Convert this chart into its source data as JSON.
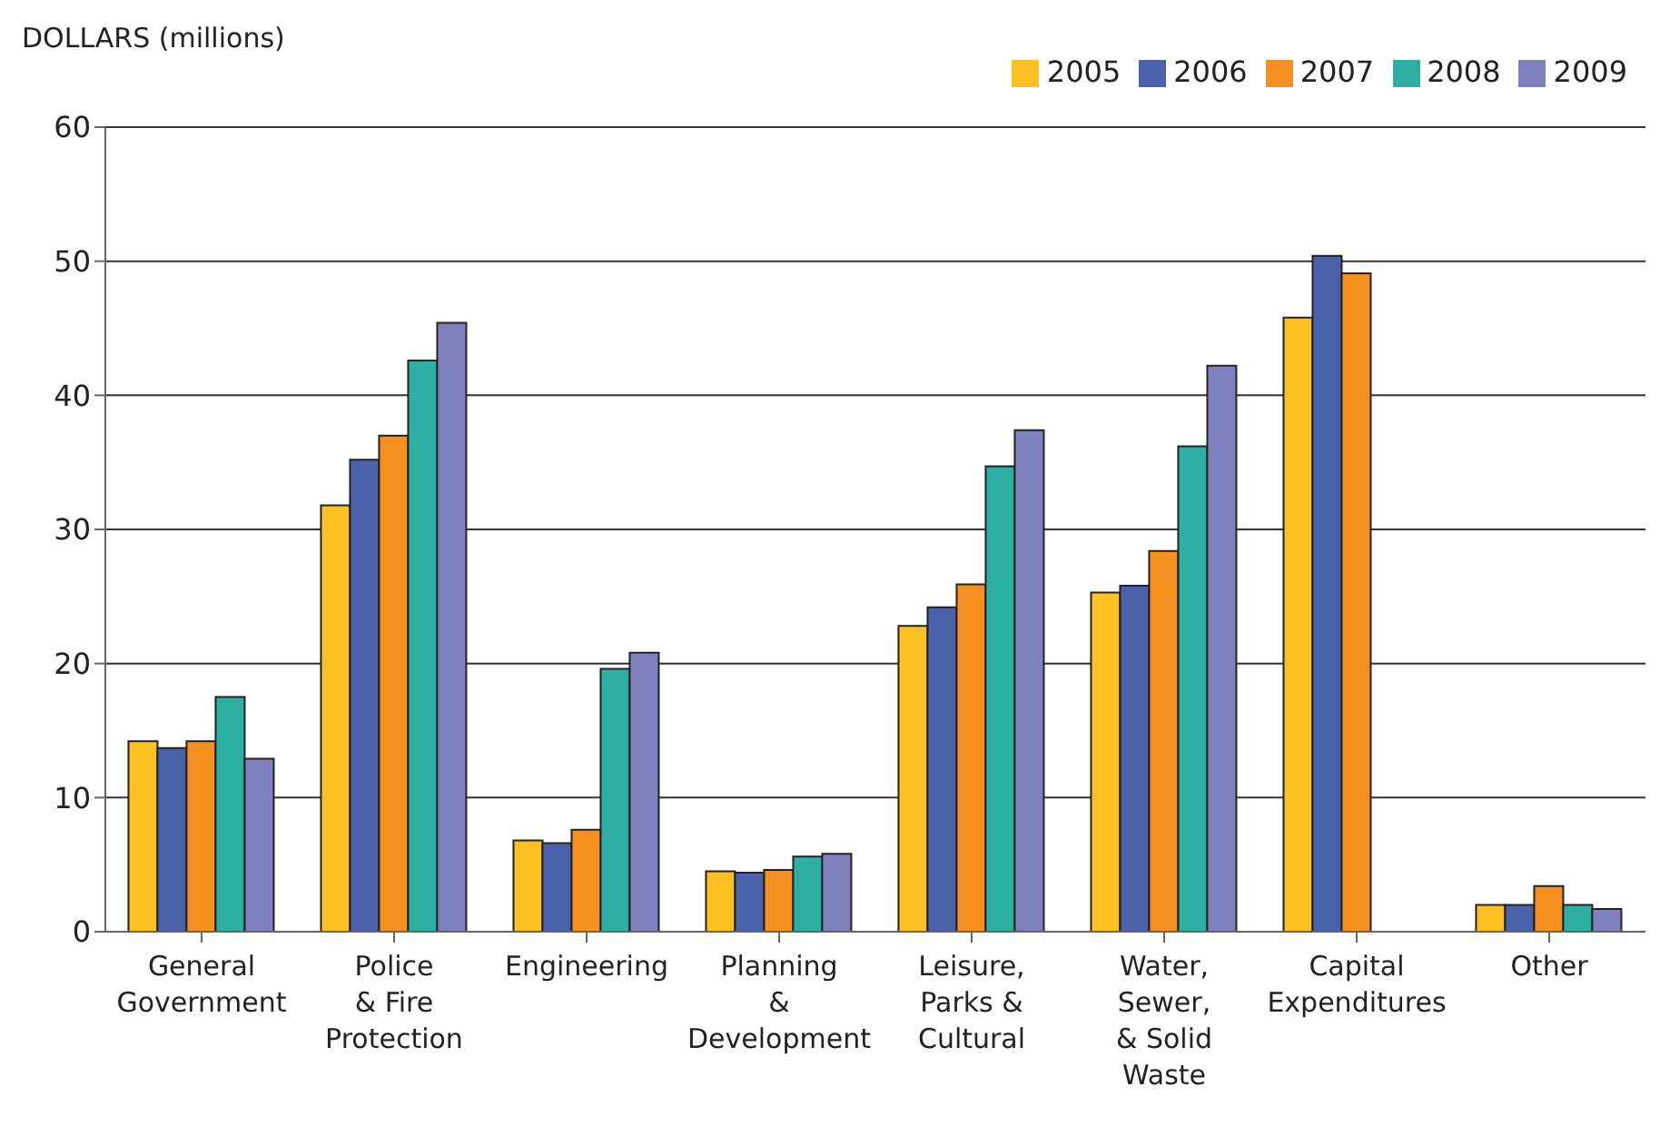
{
  "chart_data": {
    "type": "bar",
    "ylabel": "DOLLARS (millions)",
    "categories": [
      "General\nGovernment",
      "Police\n& Fire\nProtection",
      "Engineering",
      "Planning\n&\nDevelopment",
      "Leisure,\nParks &\nCultural",
      "Water,\nSewer,\n& Solid\nWaste",
      "Capital\nExpenditures",
      "Other"
    ],
    "series": [
      {
        "name": "2005",
        "color": "#fdc124",
        "values": [
          14.2,
          31.8,
          6.8,
          4.5,
          22.8,
          25.3,
          45.8,
          2.0
        ]
      },
      {
        "name": "2006",
        "color": "#4a62ab",
        "values": [
          13.7,
          35.2,
          6.6,
          4.4,
          24.2,
          25.8,
          50.4,
          2.0
        ]
      },
      {
        "name": "2007",
        "color": "#f58f1f",
        "values": [
          14.2,
          37.0,
          7.6,
          4.6,
          25.9,
          28.4,
          49.1,
          3.4
        ]
      },
      {
        "name": "2008",
        "color": "#2db0a3",
        "values": [
          17.5,
          42.6,
          19.6,
          5.6,
          34.7,
          36.2,
          null,
          2.0
        ]
      },
      {
        "name": "2009",
        "color": "#7f80be",
        "values": [
          12.9,
          45.4,
          20.8,
          5.8,
          37.4,
          42.2,
          null,
          1.7
        ]
      }
    ],
    "ylim": [
      0,
      60
    ],
    "yticks": [
      0,
      10,
      20,
      30,
      40,
      50,
      60
    ],
    "grid": "y",
    "legend": "top right"
  }
}
